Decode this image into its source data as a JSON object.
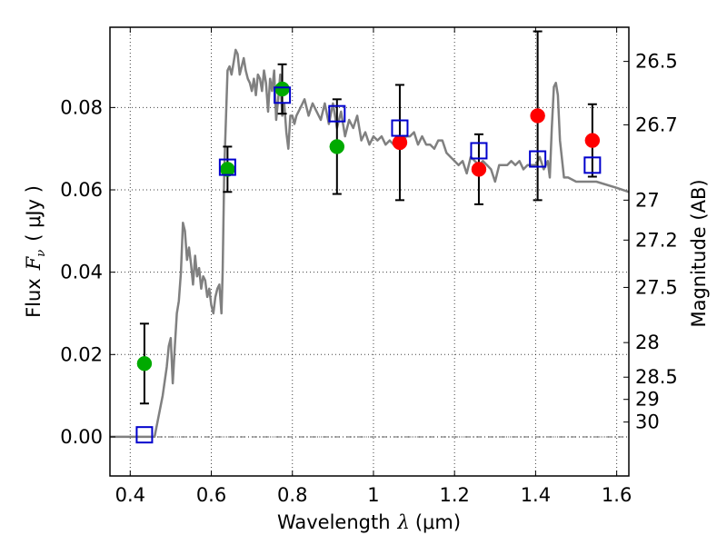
{
  "chart_data": {
    "type": "scatter",
    "xlabel": {
      "text": "Wavelength",
      "math_symbol": "λ",
      "unit": "(μm)"
    },
    "ylabel": {
      "text": "Flux",
      "math_symbol": "F",
      "math_sub": "ν",
      "unit": "( μJy )"
    },
    "y2label": "Magnitude (AB)",
    "xlim": [
      0.35,
      1.63
    ],
    "ylim": [
      -0.0095,
      0.0995
    ],
    "grid": true,
    "x_ticks": [
      {
        "value": 0.4,
        "label": "0.4"
      },
      {
        "value": 0.6,
        "label": "0.6"
      },
      {
        "value": 0.8,
        "label": "0.8"
      },
      {
        "value": 1.0,
        "label": "1"
      },
      {
        "value": 1.2,
        "label": "1.2"
      },
      {
        "value": 1.4,
        "label": "1.4"
      },
      {
        "value": 1.6,
        "label": "1.6"
      }
    ],
    "y_ticks": [
      {
        "value": 0.0,
        "label": "0.00"
      },
      {
        "value": 0.02,
        "label": "0.02"
      },
      {
        "value": 0.04,
        "label": "0.04"
      },
      {
        "value": 0.06,
        "label": "0.06"
      },
      {
        "value": 0.08,
        "label": "0.08"
      }
    ],
    "y2_ticks": [
      {
        "label": "26.5",
        "flux_value": 0.0912
      },
      {
        "label": "26.7",
        "flux_value": 0.0758
      },
      {
        "label": "27",
        "flux_value": 0.0575
      },
      {
        "label": "27.2",
        "flux_value": 0.0478
      },
      {
        "label": "27.5",
        "flux_value": 0.0363
      },
      {
        "label": "28",
        "flux_value": 0.0229
      },
      {
        "label": "28.5",
        "flux_value": 0.0145
      },
      {
        "label": "29",
        "flux_value": 0.0091
      },
      {
        "label": "30",
        "flux_value": 0.0036
      }
    ],
    "model_spectrum": {
      "color": "#808080",
      "x": [
        0.35,
        0.46,
        0.48,
        0.49,
        0.495,
        0.5,
        0.505,
        0.51,
        0.515,
        0.52,
        0.525,
        0.53,
        0.535,
        0.54,
        0.545,
        0.55,
        0.555,
        0.56,
        0.565,
        0.57,
        0.575,
        0.58,
        0.585,
        0.59,
        0.595,
        0.6,
        0.605,
        0.61,
        0.615,
        0.62,
        0.625,
        0.628,
        0.632,
        0.636,
        0.64,
        0.645,
        0.65,
        0.655,
        0.66,
        0.665,
        0.67,
        0.675,
        0.68,
        0.685,
        0.69,
        0.695,
        0.7,
        0.705,
        0.71,
        0.715,
        0.72,
        0.725,
        0.73,
        0.735,
        0.74,
        0.745,
        0.75,
        0.755,
        0.76,
        0.765,
        0.77,
        0.775,
        0.78,
        0.785,
        0.79,
        0.795,
        0.8,
        0.805,
        0.81,
        0.82,
        0.83,
        0.84,
        0.85,
        0.86,
        0.87,
        0.88,
        0.89,
        0.9,
        0.91,
        0.92,
        0.93,
        0.94,
        0.95,
        0.96,
        0.97,
        0.98,
        0.99,
        1.0,
        1.01,
        1.02,
        1.03,
        1.04,
        1.05,
        1.06,
        1.07,
        1.08,
        1.09,
        1.1,
        1.11,
        1.12,
        1.13,
        1.14,
        1.15,
        1.16,
        1.17,
        1.18,
        1.19,
        1.2,
        1.21,
        1.22,
        1.23,
        1.24,
        1.25,
        1.26,
        1.27,
        1.28,
        1.29,
        1.3,
        1.31,
        1.32,
        1.33,
        1.34,
        1.35,
        1.36,
        1.37,
        1.38,
        1.39,
        1.4,
        1.41,
        1.42,
        1.43,
        1.435,
        1.44,
        1.445,
        1.45,
        1.455,
        1.46,
        1.47,
        1.48,
        1.5,
        1.55,
        1.6,
        1.63
      ],
      "y": [
        0.0,
        0.0,
        0.01,
        0.017,
        0.022,
        0.024,
        0.013,
        0.022,
        0.03,
        0.033,
        0.04,
        0.052,
        0.05,
        0.043,
        0.046,
        0.042,
        0.037,
        0.044,
        0.039,
        0.041,
        0.036,
        0.039,
        0.038,
        0.034,
        0.036,
        0.032,
        0.03,
        0.034,
        0.036,
        0.037,
        0.03,
        0.04,
        0.065,
        0.077,
        0.089,
        0.09,
        0.088,
        0.091,
        0.094,
        0.093,
        0.088,
        0.09,
        0.092,
        0.089,
        0.087,
        0.086,
        0.084,
        0.087,
        0.083,
        0.088,
        0.087,
        0.084,
        0.089,
        0.086,
        0.079,
        0.087,
        0.084,
        0.089,
        0.077,
        0.082,
        0.088,
        0.078,
        0.081,
        0.074,
        0.07,
        0.078,
        0.078,
        0.076,
        0.078,
        0.08,
        0.082,
        0.078,
        0.081,
        0.079,
        0.077,
        0.081,
        0.076,
        0.081,
        0.075,
        0.079,
        0.073,
        0.077,
        0.075,
        0.078,
        0.072,
        0.074,
        0.071,
        0.073,
        0.072,
        0.073,
        0.071,
        0.072,
        0.071,
        0.071,
        0.07,
        0.073,
        0.073,
        0.074,
        0.071,
        0.073,
        0.071,
        0.071,
        0.07,
        0.072,
        0.072,
        0.069,
        0.068,
        0.067,
        0.066,
        0.067,
        0.064,
        0.068,
        0.067,
        0.066,
        0.067,
        0.066,
        0.065,
        0.062,
        0.066,
        0.066,
        0.066,
        0.067,
        0.066,
        0.067,
        0.065,
        0.066,
        0.066,
        0.066,
        0.068,
        0.065,
        0.067,
        0.063,
        0.075,
        0.085,
        0.086,
        0.083,
        0.072,
        0.063,
        0.063,
        0.062,
        0.062,
        0.0605,
        0.0595
      ]
    },
    "series": [
      {
        "marker": "circle",
        "color": "#00aa00",
        "x": [
          0.435,
          0.64,
          0.775,
          0.91
        ],
        "y": [
          0.0178,
          0.065,
          0.0845,
          0.0705
        ],
        "err": [
          0.0097,
          0.0055,
          0.006,
          0.0115
        ]
      },
      {
        "marker": "circle",
        "color": "#ff0000",
        "x": [
          1.065,
          1.26,
          1.405,
          1.54
        ],
        "y": [
          0.0715,
          0.065,
          0.078,
          0.072
        ],
        "err": [
          0.014,
          0.0085,
          0.0205,
          0.0088
        ]
      },
      {
        "marker": "square-open",
        "color": "#0000cc",
        "x": [
          0.435,
          0.64,
          0.775,
          0.91,
          1.065,
          1.26,
          1.405,
          1.54
        ],
        "y": [
          0.0005,
          0.0655,
          0.083,
          0.0785,
          0.075,
          0.0695,
          0.0675,
          0.066
        ]
      }
    ],
    "colors": {
      "axes": "#000000",
      "zero_line": "#000000"
    }
  }
}
